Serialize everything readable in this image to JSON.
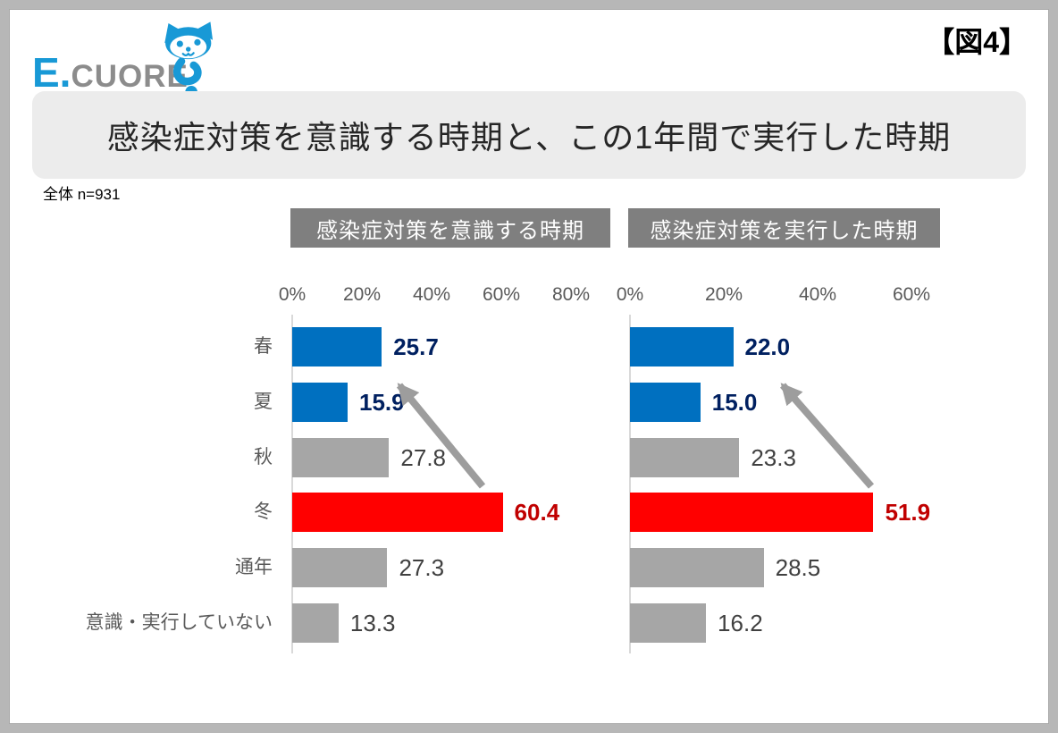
{
  "logo": {
    "brand_primary": "E.",
    "brand_secondary": "CUORE",
    "brand_primary_color": "#1899D6",
    "brand_secondary_color": "#8C8C8C",
    "mascot": "cat-question-mark"
  },
  "figure_label": "【図4】",
  "title": "感染症対策を意識する時期と、この1年間で実行した時期",
  "sample_note": "全体 n=931",
  "colors": {
    "bar_blue": "#0070C0",
    "bar_gray": "#A6A6A6",
    "bar_red": "#FF0000",
    "value_navy": "#002060",
    "value_red": "#C00000",
    "value_gray": "#404040",
    "header_bg": "#7F7F7F",
    "banner_bg": "#ECECEC",
    "axis_text": "#595959",
    "arrow_gray": "#9D9D9D"
  },
  "chart_data": [
    {
      "type": "bar",
      "orientation": "horizontal",
      "title": "感染症対策を意識する時期",
      "categories": [
        "春",
        "夏",
        "秋",
        "冬",
        "通年",
        "意識・実行していない"
      ],
      "values": [
        25.7,
        15.9,
        27.8,
        60.4,
        27.3,
        13.3
      ],
      "value_labels": [
        "25.7",
        "15.9",
        "27.8",
        "60.4",
        "27.3",
        "13.3"
      ],
      "bar_colors": [
        "blue",
        "blue",
        "gray",
        "red",
        "gray",
        "gray"
      ],
      "value_styles": [
        "navy-bold",
        "navy-bold",
        "gray",
        "red-bold",
        "gray",
        "gray"
      ],
      "x_ticks": [
        "0%",
        "20%",
        "40%",
        "60%",
        "80%"
      ],
      "xlim": [
        0,
        80
      ],
      "grid": "off",
      "legend": "none",
      "annotation": {
        "type": "arrow",
        "from_category": "冬",
        "toward": "春・夏"
      }
    },
    {
      "type": "bar",
      "orientation": "horizontal",
      "title": "感染症対策を実行した時期",
      "categories": [
        "春",
        "夏",
        "秋",
        "冬",
        "通年",
        "意識・実行していない"
      ],
      "values": [
        22.0,
        15.0,
        23.3,
        51.9,
        28.5,
        16.2
      ],
      "value_labels": [
        "22.0",
        "15.0",
        "23.3",
        "51.9",
        "28.5",
        "16.2"
      ],
      "bar_colors": [
        "blue",
        "blue",
        "gray",
        "red",
        "gray",
        "gray"
      ],
      "value_styles": [
        "navy-bold",
        "navy-bold",
        "gray",
        "red-bold",
        "gray",
        "gray"
      ],
      "x_ticks": [
        "0%",
        "20%",
        "40%",
        "60%"
      ],
      "xlim": [
        0,
        60
      ],
      "grid": "off",
      "legend": "none",
      "annotation": {
        "type": "arrow",
        "from_category": "冬",
        "toward": "春・夏"
      }
    }
  ]
}
